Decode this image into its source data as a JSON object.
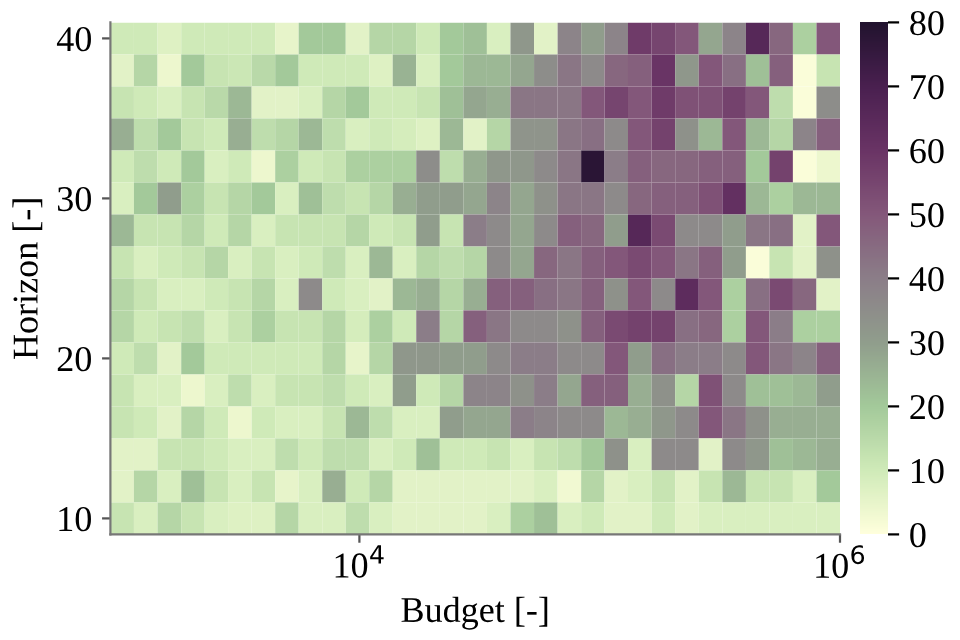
{
  "chart_data": {
    "type": "heatmap",
    "xlabel": "Budget [-]",
    "ylabel": "Horizon [-]",
    "x": [
      1030,
      1290,
      1620,
      2030,
      2540,
      3180,
      3990,
      4990,
      6260,
      7840,
      9820,
      12300,
      15400,
      19300,
      24200,
      30300,
      38000,
      47600,
      59700,
      74800,
      93700,
      117000,
      147000,
      184000,
      231000,
      289000,
      363000,
      454000,
      569000,
      713000,
      894000
    ],
    "y_categories": [
      "40",
      null,
      null,
      null,
      null,
      "30",
      null,
      null,
      null,
      null,
      "20",
      null,
      null,
      null,
      null,
      "10"
    ],
    "cells": [
      [
        10,
        10,
        7,
        10,
        10,
        10,
        10,
        5,
        20,
        20,
        6,
        16,
        16,
        10,
        20,
        22,
        8,
        32,
        6,
        38,
        30,
        38,
        58,
        55,
        50,
        28,
        38,
        66,
        46,
        18,
        50
      ],
      [
        6,
        16,
        4,
        20,
        12,
        11,
        15,
        20,
        10,
        10,
        10,
        7,
        25,
        8,
        20,
        24,
        24,
        28,
        35,
        42,
        36,
        46,
        48,
        60,
        32,
        50,
        44,
        22,
        48,
        1,
        12
      ],
      [
        12,
        10,
        8,
        12,
        15,
        24,
        6,
        6,
        8,
        16,
        20,
        10,
        10,
        12,
        22,
        28,
        26,
        42,
        42,
        42,
        50,
        55,
        50,
        58,
        52,
        52,
        56,
        50,
        14,
        1,
        35
      ],
      [
        26,
        14,
        20,
        12,
        10,
        26,
        14,
        16,
        24,
        14,
        8,
        10,
        9,
        7,
        24,
        6,
        16,
        33,
        33,
        42,
        44,
        36,
        50,
        56,
        34,
        24,
        50,
        24,
        16,
        38,
        48
      ],
      [
        10,
        14,
        10,
        20,
        8,
        10,
        4,
        18,
        10,
        12,
        18,
        18,
        18,
        35,
        14,
        26,
        32,
        32,
        36,
        42,
        78,
        40,
        48,
        46,
        46,
        48,
        48,
        20,
        56,
        1,
        4
      ],
      [
        8,
        20,
        30,
        18,
        12,
        16,
        20,
        8,
        22,
        14,
        12,
        16,
        26,
        30,
        30,
        28,
        38,
        28,
        34,
        42,
        42,
        36,
        46,
        48,
        48,
        52,
        62,
        24,
        18,
        24,
        24
      ],
      [
        24,
        12,
        12,
        16,
        10,
        16,
        8,
        12,
        12,
        12,
        16,
        10,
        12,
        30,
        12,
        40,
        36,
        28,
        36,
        48,
        46,
        30,
        66,
        54,
        36,
        36,
        30,
        42,
        44,
        6,
        50
      ],
      [
        12,
        8,
        10,
        12,
        16,
        8,
        12,
        8,
        10,
        14,
        8,
        24,
        8,
        16,
        14,
        16,
        36,
        28,
        46,
        42,
        48,
        50,
        54,
        50,
        42,
        48,
        30,
        1,
        12,
        6,
        34
      ],
      [
        16,
        12,
        8,
        8,
        10,
        12,
        16,
        8,
        36,
        10,
        8,
        6,
        24,
        26,
        16,
        26,
        48,
        48,
        44,
        42,
        48,
        34,
        50,
        36,
        64,
        50,
        18,
        44,
        54,
        46,
        6
      ],
      [
        16,
        10,
        12,
        14,
        8,
        12,
        18,
        12,
        12,
        16,
        9,
        18,
        10,
        40,
        16,
        48,
        42,
        36,
        36,
        34,
        48,
        54,
        56,
        56,
        44,
        46,
        18,
        50,
        40,
        18,
        18
      ],
      [
        10,
        14,
        6,
        20,
        10,
        10,
        10,
        10,
        10,
        16,
        5,
        16,
        32,
        32,
        30,
        30,
        36,
        40,
        40,
        36,
        36,
        50,
        30,
        44,
        40,
        40,
        36,
        50,
        42,
        38,
        48
      ],
      [
        12,
        8,
        8,
        4,
        8,
        14,
        8,
        12,
        12,
        14,
        10,
        8,
        30,
        10,
        16,
        38,
        38,
        34,
        40,
        28,
        48,
        48,
        26,
        34,
        16,
        52,
        36,
        22,
        22,
        24,
        30
      ],
      [
        12,
        10,
        6,
        16,
        10,
        4,
        10,
        8,
        8,
        12,
        24,
        14,
        8,
        8,
        30,
        28,
        28,
        40,
        38,
        36,
        36,
        24,
        26,
        32,
        36,
        50,
        42,
        34,
        26,
        26,
        26
      ],
      [
        6,
        6,
        12,
        12,
        10,
        8,
        8,
        14,
        10,
        14,
        14,
        8,
        10,
        22,
        10,
        10,
        12,
        8,
        12,
        14,
        20,
        34,
        8,
        36,
        36,
        6,
        36,
        32,
        22,
        24,
        26
      ],
      [
        6,
        16,
        8,
        22,
        12,
        8,
        12,
        5,
        8,
        26,
        10,
        16,
        6,
        6,
        6,
        6,
        6,
        6,
        8,
        3,
        16,
        6,
        8,
        12,
        6,
        12,
        24,
        12,
        12,
        8,
        20
      ],
      [
        12,
        8,
        16,
        12,
        8,
        7,
        7,
        16,
        8,
        8,
        14,
        8,
        6,
        6,
        6,
        6,
        8,
        18,
        22,
        8,
        10,
        6,
        6,
        10,
        6,
        8,
        8,
        8,
        8,
        8,
        8
      ]
    ],
    "log": "x",
    "xlim": [
      920,
      1000000
    ],
    "xticks": [
      {
        "value": 10000,
        "label": "10$^{4}$"
      },
      {
        "value": 1000000,
        "label": "10$^{6}$"
      }
    ],
    "clim": [
      0,
      80
    ],
    "cticks": [
      0,
      10,
      20,
      30,
      40,
      50,
      60,
      70,
      80
    ],
    "grid": false
  }
}
